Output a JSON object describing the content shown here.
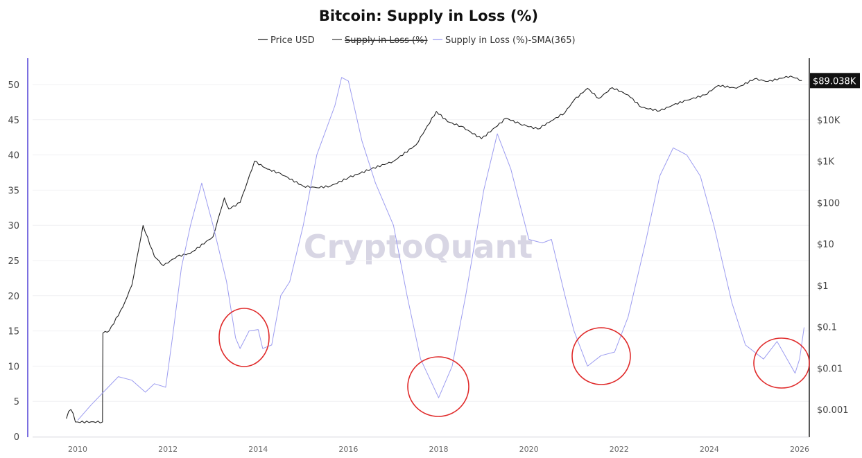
{
  "chart_data": {
    "type": "line",
    "title": "Bitcoin: Supply in Loss (%)",
    "watermark": "CryptoQuant",
    "legend": [
      {
        "label": "Price USD",
        "color": "#222222",
        "hidden": false
      },
      {
        "label": "Supply in Loss (%)",
        "color": "#444444",
        "hidden": true
      },
      {
        "label": "Supply in Loss (%)-SMA(365)",
        "color": "#9c9cf0",
        "hidden": false
      }
    ],
    "legend_position": "top-center",
    "x_ticks": [
      "2010",
      "2012",
      "2014",
      "2016",
      "2018",
      "2020",
      "2022",
      "2024",
      "2026"
    ],
    "xlim": [
      2009,
      2026.2
    ],
    "y_left": {
      "ticks": [
        "0",
        "5",
        "10",
        "15",
        "20",
        "25",
        "30",
        "35",
        "40",
        "45",
        "50"
      ],
      "ylim": [
        0,
        53
      ]
    },
    "y_right": {
      "scale": "log",
      "ticks": [
        "$0.001",
        "$0.01",
        "$0.1",
        "$1",
        "$10",
        "$100",
        "$1K",
        "$10K"
      ],
      "ylim": [
        0.0003,
        150000
      ]
    },
    "last_price_label": "$89.038K",
    "grid": true,
    "series": [
      {
        "name": "Price USD",
        "axis": "right",
        "color": "#222222",
        "x": [
          2009.75,
          2009.8,
          2009.85,
          2009.9,
          2009.95,
          2010.0,
          2010.55,
          2010.56,
          2010.7,
          2011.0,
          2011.2,
          2011.45,
          2011.7,
          2011.9,
          2012.2,
          2012.5,
          2013.0,
          2013.25,
          2013.35,
          2013.6,
          2013.92,
          2014.2,
          2014.5,
          2015.0,
          2015.3,
          2015.6,
          2016.0,
          2016.5,
          2017.0,
          2017.5,
          2017.95,
          2018.2,
          2018.5,
          2018.95,
          2019.5,
          2019.8,
          2020.2,
          2020.5,
          2020.8,
          2021.0,
          2021.3,
          2021.55,
          2021.85,
          2022.2,
          2022.5,
          2022.9,
          2023.2,
          2023.5,
          2023.9,
          2024.2,
          2024.6,
          2025.0,
          2025.3,
          2025.8,
          2026.05
        ],
        "values": [
          0.0006,
          0.0009,
          0.001,
          0.0008,
          0.0005,
          0.0005,
          0.0005,
          0.07,
          0.08,
          0.3,
          1,
          28,
          5,
          3,
          5,
          6,
          15,
          130,
          70,
          100,
          1000,
          650,
          500,
          250,
          230,
          250,
          400,
          650,
          1000,
          2500,
          16000,
          9000,
          7000,
          3500,
          11000,
          8000,
          6000,
          9500,
          15000,
          30000,
          58000,
          33000,
          60000,
          40000,
          20000,
          16500,
          23000,
          30000,
          40000,
          68000,
          58000,
          98000,
          85000,
          115000,
          89038
        ]
      },
      {
        "name": "Supply in Loss (%)-SMA(365)",
        "axis": "left",
        "color": "#9c9cf0",
        "x": [
          2010.0,
          2010.3,
          2010.6,
          2010.9,
          2011.2,
          2011.5,
          2011.7,
          2011.95,
          2012.1,
          2012.3,
          2012.5,
          2012.75,
          2013.0,
          2013.3,
          2013.5,
          2013.6,
          2013.8,
          2014.0,
          2014.1,
          2014.3,
          2014.5,
          2014.7,
          2015.0,
          2015.3,
          2015.7,
          2015.85,
          2016.0,
          2016.3,
          2016.6,
          2017.0,
          2017.3,
          2017.6,
          2018.0,
          2018.3,
          2018.6,
          2019.0,
          2019.3,
          2019.6,
          2020.0,
          2020.3,
          2020.5,
          2020.8,
          2021.0,
          2021.3,
          2021.6,
          2021.9,
          2022.2,
          2022.6,
          2022.9,
          2023.2,
          2023.5,
          2023.8,
          2024.1,
          2024.5,
          2024.8,
          2025.2,
          2025.5,
          2025.9,
          2026.0,
          2026.1
        ],
        "values": [
          2.3,
          4.5,
          6.5,
          8.5,
          8,
          6.3,
          7.5,
          7,
          14,
          24,
          30,
          36,
          30,
          22,
          14,
          12.5,
          15,
          15.2,
          12.5,
          13,
          20,
          22,
          30,
          40,
          47,
          51,
          50.5,
          42,
          36,
          30,
          20,
          11,
          5.5,
          10,
          20,
          35,
          43,
          38,
          28,
          27.5,
          28,
          20,
          15,
          10,
          11.5,
          12,
          17,
          28,
          37,
          41,
          40,
          37,
          30,
          19,
          13,
          11,
          13.5,
          9,
          11,
          15.5
        ]
      }
    ]
  }
}
